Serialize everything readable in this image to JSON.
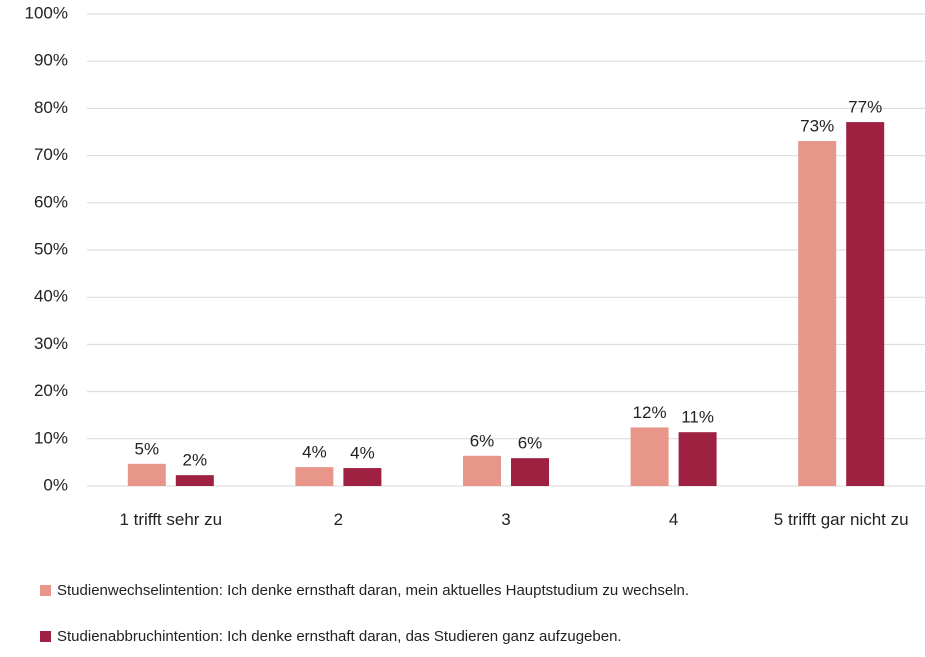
{
  "chart_data": {
    "type": "bar",
    "categories": [
      "1 trifft sehr zu",
      "2",
      "3",
      "4",
      "5 trifft gar nicht zu"
    ],
    "series": [
      {
        "name": "Studienwechselintention: Ich denke ernsthaft daran, mein aktuelles Hauptstudium zu wechseln.",
        "color": "#e8968a",
        "values": [
          4.7,
          4.0,
          6.4,
          12.4,
          73.1
        ],
        "value_labels": [
          "5%",
          "4%",
          "6%",
          "12%",
          "73%"
        ]
      },
      {
        "name": "Studienabbruchintention: Ich denke ernsthaft daran, das Studieren ganz aufzugeben.",
        "color": "#9e2142",
        "values": [
          2.3,
          3.8,
          5.9,
          11.4,
          77.1
        ],
        "value_labels": [
          "2%",
          "4%",
          "6%",
          "11%",
          "77%"
        ]
      }
    ],
    "ylim": [
      0,
      100
    ],
    "yticks": [
      {
        "value": 0,
        "label": "0%"
      },
      {
        "value": 10,
        "label": "10%"
      },
      {
        "value": 20,
        "label": "20%"
      },
      {
        "value": 30,
        "label": "30%"
      },
      {
        "value": 40,
        "label": "40%"
      },
      {
        "value": 50,
        "label": "50%"
      },
      {
        "value": 60,
        "label": "60%"
      },
      {
        "value": 70,
        "label": "70%"
      },
      {
        "value": 80,
        "label": "80%"
      },
      {
        "value": 90,
        "label": "90%"
      },
      {
        "value": 100,
        "label": "100%"
      }
    ],
    "grid": true
  }
}
